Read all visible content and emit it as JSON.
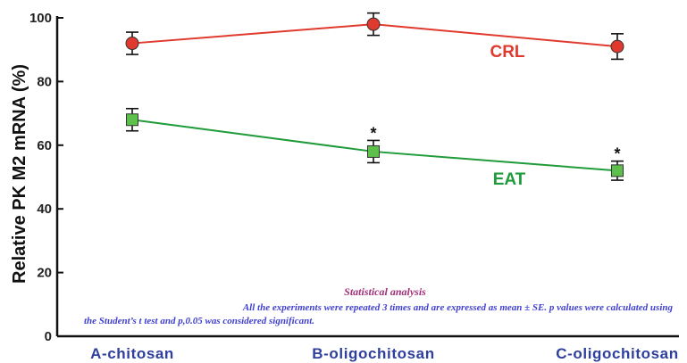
{
  "chart_data": {
    "type": "line",
    "ylabel": "Relative PK M2 mRNA (%)",
    "xlabel": "",
    "categories": [
      "A-chitosan",
      "B-oligochitosan",
      "C-oligochitosan"
    ],
    "ylim": [
      0,
      100
    ],
    "yticks": [
      "0",
      "20",
      "40",
      "60",
      "80",
      "100"
    ],
    "grid": false,
    "series": [
      {
        "name": "CRL",
        "color": "#e03a2e",
        "marker": "circle",
        "values": [
          92,
          98,
          91
        ],
        "errors": [
          3.5,
          3.5,
          4
        ],
        "significance": [
          "",
          "",
          ""
        ]
      },
      {
        "name": "EAT",
        "color": "#1f9b3a",
        "marker": "square",
        "values": [
          68,
          58,
          52
        ],
        "errors": [
          3.5,
          3.5,
          3
        ],
        "significance": [
          "",
          "*",
          "*"
        ]
      }
    ],
    "annotation": {
      "title": "Statistical analysis",
      "line1": "All the experiments were repeated 3 times and are expressed as mean ± SE. p values were calculated using",
      "line2": "the Student’s t test and p,0.05 was considered significant."
    }
  }
}
